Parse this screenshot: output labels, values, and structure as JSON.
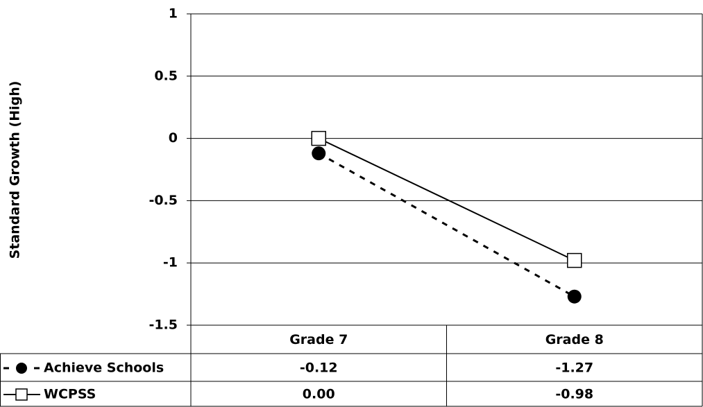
{
  "chart_data": {
    "type": "line",
    "y_label": "Standard Growth (High)",
    "categories": [
      "Grade 7",
      "Grade 8"
    ],
    "series": [
      {
        "name": "Achieve Schools",
        "color": "#000000",
        "line_style": "dashed",
        "marker": "circle",
        "values": [
          -0.12,
          -1.27
        ],
        "value_labels": [
          "-0.12",
          "-1.27"
        ]
      },
      {
        "name": "WCPSS",
        "color": "#000000",
        "line_style": "solid",
        "marker": "square",
        "values": [
          0,
          -0.98
        ],
        "value_labels": [
          "0.00",
          "-0.98"
        ]
      }
    ],
    "ylim": [
      -1.5,
      1
    ],
    "yticks": [
      1,
      0.5,
      0,
      -0.5,
      -1,
      -1.5
    ],
    "grid": true
  }
}
